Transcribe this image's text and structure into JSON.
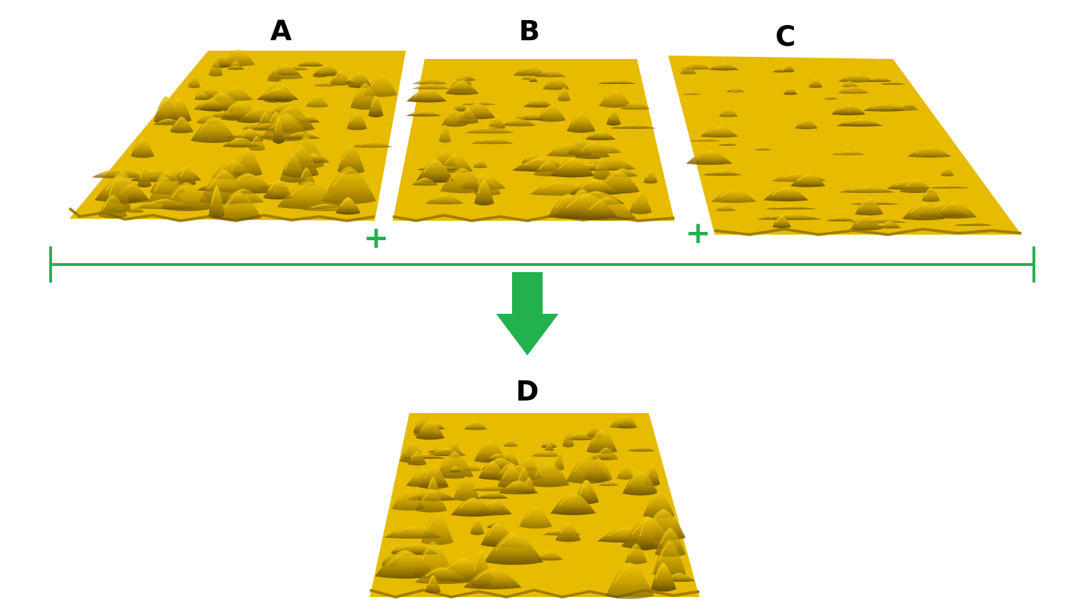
{
  "colors": {
    "surface": "#e6bb00",
    "surface_light": "#f0c80c",
    "shadow": "#6e5400",
    "shadow_mid": "#a17e00",
    "connector": "#22b14c",
    "label": "#000000"
  },
  "panels": [
    {
      "id": "A",
      "label": "A",
      "roughness": "high"
    },
    {
      "id": "B",
      "label": "B",
      "roughness": "medium"
    },
    {
      "id": "C",
      "label": "C",
      "roughness": "low"
    },
    {
      "id": "D",
      "label": "D",
      "roughness": "high"
    }
  ],
  "operators": [
    {
      "symbol": "+",
      "between": [
        "A",
        "B"
      ]
    },
    {
      "symbol": "+",
      "between": [
        "B",
        "C"
      ]
    }
  ],
  "result": {
    "arrow_icon": "down-arrow-icon",
    "target": "D"
  }
}
